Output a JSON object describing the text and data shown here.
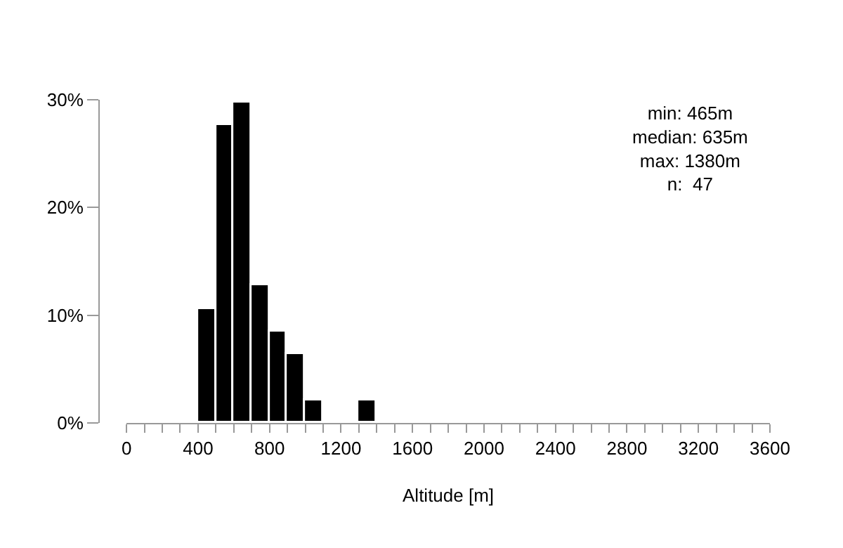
{
  "chart_data": {
    "type": "histogram",
    "xlabel": "Altitude [m]",
    "bins": [
      400,
      500,
      600,
      700,
      800,
      900,
      1000,
      1100,
      1200,
      1300,
      1400
    ],
    "values": [
      10.6,
      27.7,
      29.8,
      12.8,
      8.5,
      6.4,
      2.1,
      0,
      0,
      2.1
    ],
    "color": "#000000",
    "xlim": [
      0,
      3600
    ],
    "xticks": [
      0,
      {
        "value": 100,
        "label": null
      },
      {
        "value": 200,
        "label": null
      },
      {
        "value": 300,
        "label": null
      },
      400,
      {
        "value": 500,
        "label": null
      },
      {
        "value": 600,
        "label": null
      },
      {
        "value": 700,
        "label": null
      },
      800,
      {
        "value": 900,
        "label": null
      },
      {
        "value": 1000,
        "label": null
      },
      {
        "value": 1100,
        "label": null
      },
      1200,
      {
        "value": 1300,
        "label": null
      },
      {
        "value": 1400,
        "label": null
      },
      {
        "value": 1500,
        "label": null
      },
      1600,
      {
        "value": 1700,
        "label": null
      },
      {
        "value": 1800,
        "label": null
      },
      {
        "value": 1900,
        "label": null
      },
      2000,
      {
        "value": 2100,
        "label": null
      },
      {
        "value": 2200,
        "label": null
      },
      {
        "value": 2300,
        "label": null
      },
      2400,
      {
        "value": 2500,
        "label": null
      },
      {
        "value": 2600,
        "label": null
      },
      {
        "value": 2700,
        "label": null
      },
      2800,
      {
        "value": 2900,
        "label": null
      },
      {
        "value": 3000,
        "label": null
      },
      {
        "value": 3100,
        "label": null
      },
      3200,
      {
        "value": 3300,
        "label": null
      },
      {
        "value": 3400,
        "label": null
      },
      {
        "value": 3500,
        "label": null
      },
      3600
    ],
    "ylim": [
      0,
      30
    ],
    "yticks": [
      {
        "value": 0,
        "label": "0%"
      },
      {
        "value": 10,
        "label": "10%"
      },
      {
        "value": 20,
        "label": "20%"
      },
      {
        "value": 30,
        "label": "30%"
      }
    ],
    "annotations": [
      "min: 465m\nmedian: 635m\nmax: 1380m\nn:  47"
    ]
  }
}
